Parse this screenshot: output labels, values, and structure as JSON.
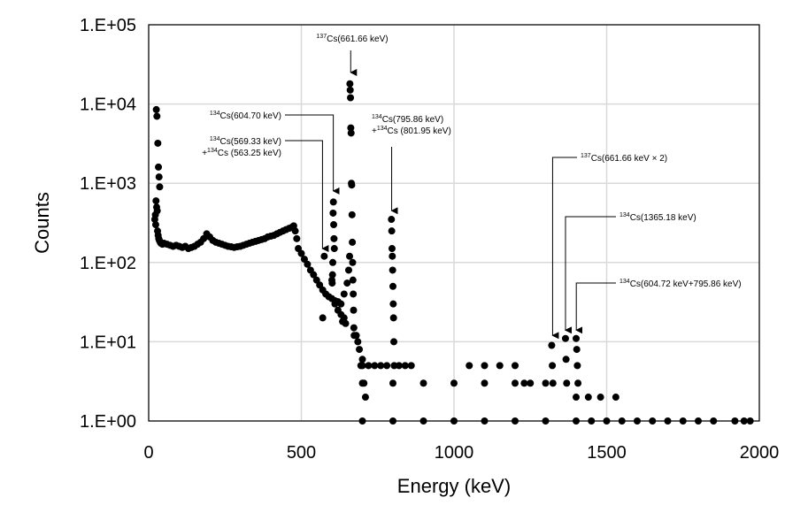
{
  "chart_data": {
    "type": "scatter",
    "title": "",
    "xlabel": "Energy (keV)",
    "ylabel": "Counts",
    "xlim": [
      0,
      2000
    ],
    "ylim": [
      1,
      100000
    ],
    "y_scale": "log",
    "grid": true,
    "legend": "none",
    "marker_color": "#000000",
    "x_ticks": [
      0,
      500,
      1000,
      1500,
      2000
    ],
    "x_tick_labels": [
      "0",
      "500",
      "1000",
      "1500",
      "2000"
    ],
    "y_ticks": [
      1,
      10,
      100,
      1000,
      10000,
      100000
    ],
    "y_tick_labels": [
      "1.E+00",
      "1.E+01",
      "1.E+02",
      "1.E+03",
      "1.E+04",
      "1.E+05"
    ],
    "series": [
      {
        "points": [
          [
            25,
            8500
          ],
          [
            27,
            7000
          ],
          [
            30,
            3200
          ],
          [
            32,
            1600
          ],
          [
            34,
            1200
          ],
          [
            36,
            900
          ],
          [
            24,
            600
          ],
          [
            26,
            500
          ],
          [
            28,
            450
          ],
          [
            22,
            400
          ],
          [
            20,
            350
          ],
          [
            23,
            300
          ],
          [
            29,
            250
          ],
          [
            31,
            220
          ],
          [
            33,
            200
          ],
          [
            35,
            190
          ],
          [
            38,
            180
          ],
          [
            40,
            175
          ],
          [
            45,
            170
          ],
          [
            50,
            175
          ],
          [
            60,
            170
          ],
          [
            70,
            165
          ],
          [
            80,
            160
          ],
          [
            90,
            165
          ],
          [
            100,
            160
          ],
          [
            110,
            155
          ],
          [
            120,
            160
          ],
          [
            130,
            150
          ],
          [
            140,
            155
          ],
          [
            150,
            160
          ],
          [
            160,
            170
          ],
          [
            170,
            180
          ],
          [
            180,
            200
          ],
          [
            190,
            230
          ],
          [
            200,
            210
          ],
          [
            210,
            190
          ],
          [
            220,
            180
          ],
          [
            230,
            175
          ],
          [
            240,
            170
          ],
          [
            250,
            165
          ],
          [
            260,
            160
          ],
          [
            270,
            158
          ],
          [
            280,
            155
          ],
          [
            290,
            158
          ],
          [
            300,
            160
          ],
          [
            310,
            165
          ],
          [
            320,
            170
          ],
          [
            330,
            175
          ],
          [
            340,
            180
          ],
          [
            350,
            185
          ],
          [
            360,
            190
          ],
          [
            370,
            195
          ],
          [
            380,
            200
          ],
          [
            390,
            210
          ],
          [
            400,
            215
          ],
          [
            410,
            220
          ],
          [
            420,
            230
          ],
          [
            430,
            240
          ],
          [
            440,
            250
          ],
          [
            450,
            260
          ],
          [
            460,
            270
          ],
          [
            470,
            280
          ],
          [
            475,
            290
          ],
          [
            480,
            250
          ],
          [
            485,
            200
          ],
          [
            490,
            150
          ],
          [
            500,
            130
          ],
          [
            510,
            110
          ],
          [
            520,
            95
          ],
          [
            530,
            80
          ],
          [
            540,
            70
          ],
          [
            550,
            60
          ],
          [
            560,
            52
          ],
          [
            570,
            45
          ],
          [
            580,
            40
          ],
          [
            590,
            37
          ],
          [
            600,
            35
          ],
          [
            610,
            33
          ],
          [
            620,
            32
          ],
          [
            630,
            30
          ],
          [
            640,
            40
          ],
          [
            650,
            55
          ],
          [
            655,
            80
          ],
          [
            658,
            120
          ],
          [
            575,
            120
          ],
          [
            600,
            60
          ],
          [
            610,
            30
          ],
          [
            620,
            25
          ],
          [
            630,
            22
          ],
          [
            640,
            20
          ],
          [
            635,
            18
          ],
          [
            645,
            17
          ],
          [
            570,
            20
          ],
          [
            604,
            420
          ],
          [
            605,
            580
          ],
          [
            606,
            300
          ],
          [
            607,
            200
          ],
          [
            608,
            150
          ],
          [
            603,
            100
          ],
          [
            602,
            70
          ],
          [
            601,
            55
          ],
          [
            659,
            18000
          ],
          [
            660,
            15000
          ],
          [
            661,
            12000
          ],
          [
            662,
            5000
          ],
          [
            663,
            4300
          ],
          [
            664,
            1000
          ],
          [
            665,
            950
          ],
          [
            666,
            400
          ],
          [
            667,
            180
          ],
          [
            668,
            100
          ],
          [
            669,
            60
          ],
          [
            670,
            40
          ],
          [
            671,
            25
          ],
          [
            672,
            15
          ],
          [
            673,
            12
          ],
          [
            690,
            8
          ],
          [
            700,
            6
          ],
          [
            680,
            12
          ],
          [
            685,
            10
          ],
          [
            695,
            5
          ],
          [
            705,
            3
          ],
          [
            710,
            2
          ],
          [
            795,
            350
          ],
          [
            796,
            250
          ],
          [
            797,
            150
          ],
          [
            798,
            120
          ],
          [
            799,
            80
          ],
          [
            800,
            50
          ],
          [
            801,
            30
          ],
          [
            802,
            20
          ],
          [
            803,
            10
          ],
          [
            804,
            5
          ],
          [
            700,
            5
          ],
          [
            720,
            5
          ],
          [
            740,
            5
          ],
          [
            760,
            5
          ],
          [
            780,
            5
          ],
          [
            820,
            5
          ],
          [
            840,
            5
          ],
          [
            860,
            5
          ],
          [
            1050,
            5
          ],
          [
            1100,
            5
          ],
          [
            1150,
            5
          ],
          [
            1200,
            5
          ],
          [
            1230,
            3
          ],
          [
            700,
            3
          ],
          [
            800,
            3
          ],
          [
            900,
            3
          ],
          [
            1000,
            3
          ],
          [
            1100,
            3
          ],
          [
            1200,
            3
          ],
          [
            1250,
            3
          ],
          [
            1300,
            3
          ],
          [
            1400,
            2
          ],
          [
            1440,
            2
          ],
          [
            1480,
            2
          ],
          [
            1530,
            2
          ],
          [
            700,
            1
          ],
          [
            800,
            1
          ],
          [
            900,
            1
          ],
          [
            1000,
            1
          ],
          [
            1100,
            1
          ],
          [
            1200,
            1
          ],
          [
            1300,
            1
          ],
          [
            1400,
            1
          ],
          [
            1450,
            1
          ],
          [
            1500,
            1
          ],
          [
            1550,
            1
          ],
          [
            1600,
            1
          ],
          [
            1650,
            1
          ],
          [
            1700,
            1
          ],
          [
            1750,
            1
          ],
          [
            1800,
            1
          ],
          [
            1850,
            1
          ],
          [
            1920,
            1
          ],
          [
            1950,
            1
          ],
          [
            1970,
            1
          ],
          [
            1320,
            9
          ],
          [
            1322,
            5
          ],
          [
            1324,
            3
          ],
          [
            1365,
            11
          ],
          [
            1367,
            6
          ],
          [
            1369,
            3
          ],
          [
            1400,
            11
          ],
          [
            1402,
            8
          ],
          [
            1404,
            5
          ],
          [
            1406,
            3
          ]
        ]
      }
    ],
    "annotations": [
      {
        "lines": [
          {
            "sup": "137",
            "text": "Cs(661.66 keV)"
          }
        ],
        "arrow_x": 661.66,
        "arrow_y": 25000
      },
      {
        "lines": [
          {
            "sup": "134",
            "text": "Cs(604.70 keV)"
          }
        ],
        "arrow_x": 604.7,
        "arrow_y": 800
      },
      {
        "lines": [
          {
            "sup": "134",
            "text": "Cs(569.33 keV)"
          },
          {
            "prefix": "+",
            "sup": "134",
            "text": "Cs (563.25 keV)"
          }
        ],
        "arrow_x": 569.33,
        "arrow_y": 150
      },
      {
        "lines": [
          {
            "sup": "134",
            "text": "Cs(795.86 keV)"
          },
          {
            "prefix": "+",
            "sup": "134",
            "text": "Cs (801.95 keV)"
          }
        ],
        "arrow_x": 795.86,
        "arrow_y": 450
      },
      {
        "lines": [
          {
            "sup": "137",
            "text": "Cs(661.66 keV × 2)"
          }
        ],
        "arrow_x": 1323,
        "arrow_y": 12
      },
      {
        "lines": [
          {
            "sup": "134",
            "text": "Cs(1365.18 keV)"
          }
        ],
        "arrow_x": 1365.18,
        "arrow_y": 14
      },
      {
        "lines": [
          {
            "sup": "134",
            "text": "Cs(604.72 keV+795.86 keV)"
          }
        ],
        "arrow_x": 1400.58,
        "arrow_y": 14
      }
    ]
  }
}
